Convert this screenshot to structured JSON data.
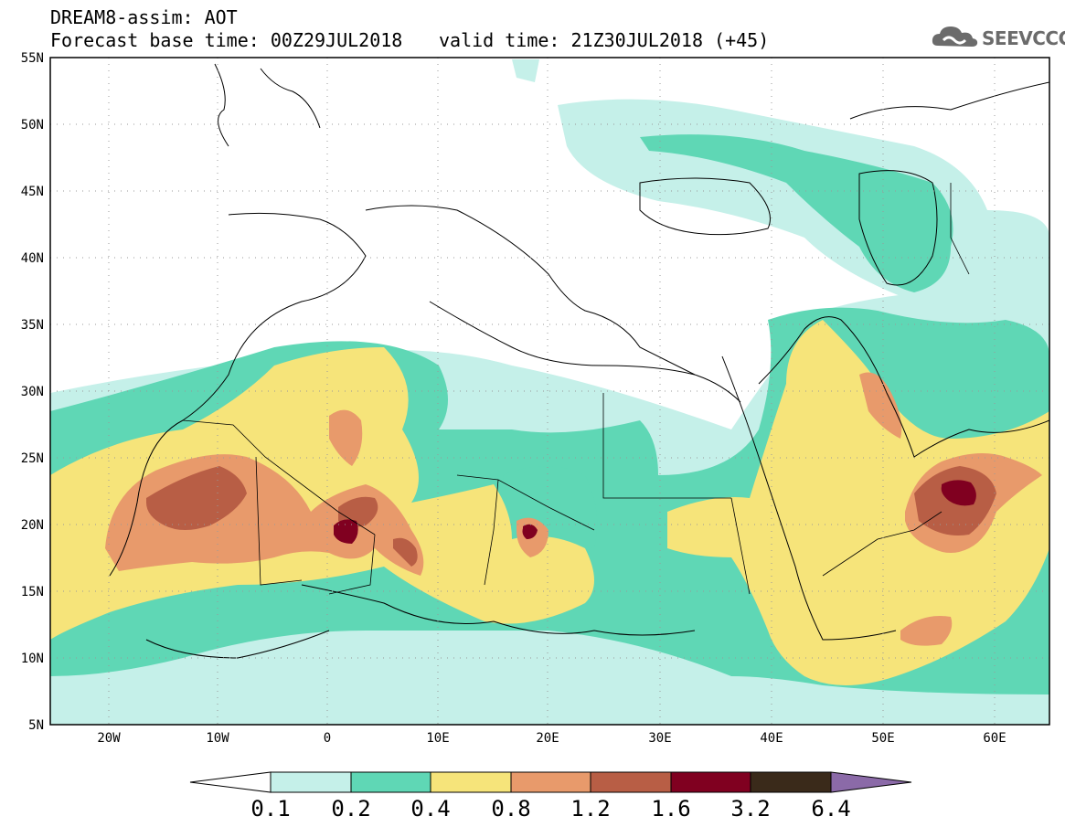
{
  "header": {
    "title": "DREAM8-assim: AOT",
    "base_time": "Forecast base time: 00Z29JUL2018",
    "valid_time": "valid time: 21Z30JUL2018 (+45)"
  },
  "logo": {
    "text": "SEEVCCC",
    "icon": "cloud-icon",
    "color": "#6b6b6b"
  },
  "map": {
    "lat_labels": [
      "55N",
      "50N",
      "45N",
      "40N",
      "35N",
      "30N",
      "25N",
      "20N",
      "15N",
      "10N",
      "5N"
    ],
    "lon_labels": [
      "20W",
      "10W",
      "0",
      "10E",
      "20E",
      "30E",
      "40E",
      "50E",
      "60E"
    ],
    "lon_range": [
      -25,
      65
    ],
    "lat_range": [
      5,
      55
    ],
    "grid": "dotted"
  },
  "colorbar": {
    "levels": [
      "0.1",
      "0.2",
      "0.4",
      "0.8",
      "1.2",
      "1.6",
      "3.2",
      "6.4"
    ],
    "colors": [
      "#ffffff",
      "#c5f0e9",
      "#5fd7b5",
      "#f6e47a",
      "#e89a6b",
      "#b85e45",
      "#800020",
      "#3a2a1a",
      "#8b6aa8"
    ]
  }
}
